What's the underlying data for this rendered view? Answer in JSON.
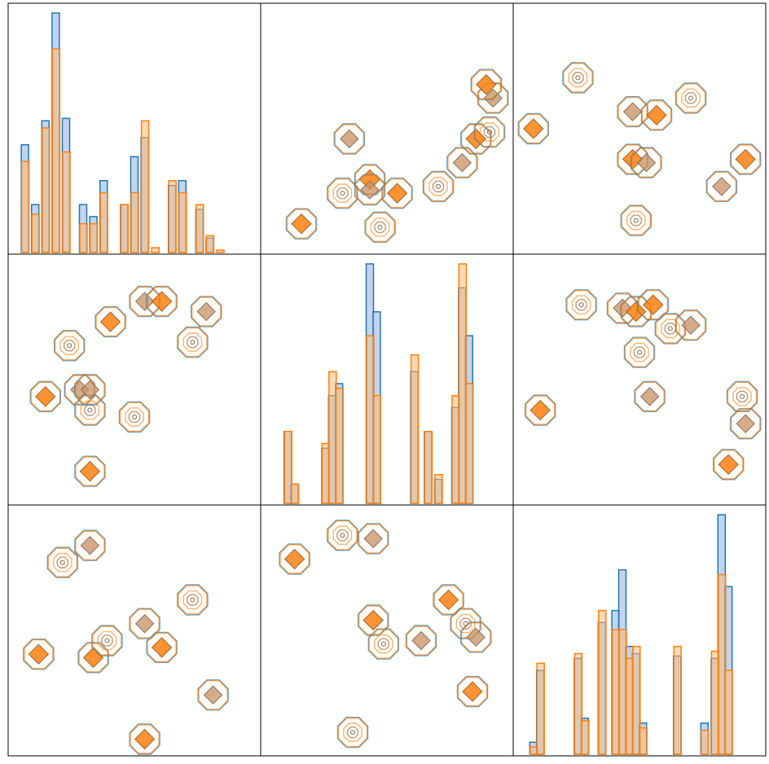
{
  "figure": {
    "colors": {
      "series_a": "#1f77b4",
      "series_b": "#ff7f0e",
      "frame": "#000000",
      "fill_a": "#aec7e8",
      "fill_b": "#ffbb78"
    }
  },
  "chart_data": [
    {
      "panel": "row1-col1",
      "type": "histogram",
      "variable": 1,
      "x": [
        0.3,
        0.6,
        0.9,
        1.2,
        1.5,
        2.0,
        2.3,
        2.6,
        3.2,
        3.5,
        3.8,
        4.1,
        4.6,
        4.9,
        5.4,
        5.7,
        6.0
      ],
      "series": [
        {
          "values": [
            0.45,
            0.2,
            0.55,
            1.0,
            0.56,
            0.2,
            0.15,
            0.3,
            0.2,
            0.4,
            0.48,
            0.0,
            0.28,
            0.3,
            0.18,
            0.06,
            0.0
          ]
        },
        {
          "values": [
            0.38,
            0.16,
            0.52,
            0.85,
            0.42,
            0.12,
            0.12,
            0.25,
            0.2,
            0.25,
            0.55,
            0.02,
            0.3,
            0.25,
            0.2,
            0.07,
            0.01
          ]
        }
      ]
    },
    {
      "panel": "row1-col2",
      "type": "scatter",
      "points": [
        [
          1.0,
          0.7
        ],
        [
          2.2,
          1.6
        ],
        [
          2.4,
          3.2
        ],
        [
          3.0,
          2.0
        ],
        [
          3.3,
          0.6
        ],
        [
          3.0,
          1.7
        ],
        [
          3.8,
          1.6
        ],
        [
          5.0,
          1.8
        ],
        [
          5.7,
          2.5
        ],
        [
          6.1,
          3.2
        ],
        [
          6.5,
          3.4
        ],
        [
          6.6,
          4.4
        ],
        [
          6.4,
          4.8
        ]
      ]
    },
    {
      "panel": "row1-col3",
      "type": "scatter",
      "points": [
        [
          0.4,
          3.5
        ],
        [
          1.7,
          5.0
        ],
        [
          3.3,
          4.0
        ],
        [
          3.3,
          2.6
        ],
        [
          3.4,
          0.8
        ],
        [
          3.7,
          2.5
        ],
        [
          4.0,
          3.9
        ],
        [
          5.0,
          4.4
        ],
        [
          5.9,
          1.8
        ],
        [
          6.6,
          2.6
        ]
      ]
    },
    {
      "panel": "row2-col1",
      "type": "scatter",
      "points": [
        [
          0.9,
          3.0
        ],
        [
          1.6,
          4.5
        ],
        [
          1.9,
          3.2
        ],
        [
          2.2,
          0.8
        ],
        [
          2.2,
          2.6
        ],
        [
          2.2,
          3.2
        ],
        [
          2.8,
          5.2
        ],
        [
          3.5,
          2.4
        ],
        [
          3.8,
          5.8
        ],
        [
          4.3,
          5.8
        ],
        [
          5.2,
          4.6
        ],
        [
          5.6,
          5.5
        ]
      ]
    },
    {
      "panel": "row2-col2",
      "type": "histogram",
      "variable": 2,
      "x": [
        0.6,
        0.8,
        1.7,
        1.9,
        2.1,
        3.0,
        3.2,
        4.1,
        4.3,
        4.7,
        5.0,
        5.5,
        5.7,
        5.9
      ],
      "series": [
        {
          "values": [
            0.3,
            0.08,
            0.23,
            0.45,
            0.5,
            1.0,
            0.8,
            0.0,
            0.55,
            0.3,
            0.1,
            0.4,
            0.9,
            0.7
          ]
        },
        {
          "values": [
            0.3,
            0.08,
            0.25,
            0.55,
            0.48,
            0.7,
            0.45,
            0.0,
            0.62,
            0.3,
            0.12,
            0.45,
            1.0,
            0.5
          ]
        }
      ]
    },
    {
      "panel": "row2-col3",
      "type": "scatter",
      "points": [
        [
          0.6,
          2.6
        ],
        [
          1.8,
          5.7
        ],
        [
          3.0,
          5.6
        ],
        [
          3.4,
          5.5
        ],
        [
          3.5,
          4.3
        ],
        [
          3.8,
          3.0
        ],
        [
          3.9,
          5.7
        ],
        [
          4.4,
          5.0
        ],
        [
          5.0,
          5.1
        ],
        [
          6.1,
          1.0
        ],
        [
          6.5,
          3.0
        ],
        [
          6.6,
          2.2
        ]
      ]
    },
    {
      "panel": "row3-col1",
      "type": "scatter",
      "points": [
        [
          0.7,
          2.8
        ],
        [
          1.4,
          5.5
        ],
        [
          2.2,
          6.0
        ],
        [
          2.3,
          2.7
        ],
        [
          2.7,
          3.2
        ],
        [
          3.8,
          3.7
        ],
        [
          4.3,
          3.0
        ],
        [
          5.2,
          4.4
        ],
        [
          5.8,
          1.6
        ],
        [
          3.8,
          0.3
        ]
      ]
    },
    {
      "panel": "row3-col2",
      "type": "scatter",
      "points": [
        [
          0.8,
          5.6
        ],
        [
          2.2,
          6.3
        ],
        [
          3.1,
          6.2
        ],
        [
          3.1,
          3.8
        ],
        [
          3.4,
          3.1
        ],
        [
          4.5,
          3.2
        ],
        [
          5.3,
          4.4
        ],
        [
          5.8,
          3.7
        ],
        [
          6.1,
          3.3
        ],
        [
          6.0,
          1.7
        ],
        [
          2.5,
          0.5
        ]
      ]
    },
    {
      "panel": "row3-col3",
      "type": "histogram",
      "variable": 3,
      "x": [
        0.4,
        0.6,
        1.7,
        1.9,
        2.4,
        2.8,
        3.0,
        3.2,
        3.4,
        3.6,
        4.6,
        5.4,
        5.7,
        5.9,
        6.1
      ],
      "series": [
        {
          "values": [
            0.05,
            0.35,
            0.4,
            0.15,
            0.55,
            0.6,
            0.77,
            0.45,
            0.42,
            0.13,
            0.41,
            0.13,
            0.4,
            1.0,
            0.7
          ]
        },
        {
          "values": [
            0.03,
            0.38,
            0.42,
            0.14,
            0.6,
            0.52,
            0.52,
            0.4,
            0.45,
            0.11,
            0.45,
            0.1,
            0.43,
            0.75,
            0.35
          ]
        }
      ]
    }
  ]
}
